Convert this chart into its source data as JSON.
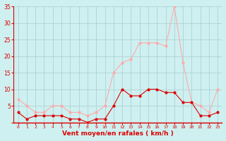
{
  "hours": [
    0,
    1,
    2,
    3,
    4,
    5,
    6,
    7,
    8,
    9,
    10,
    11,
    12,
    13,
    14,
    15,
    16,
    17,
    18,
    19,
    20,
    21,
    22,
    23
  ],
  "wind_avg": [
    3,
    1,
    2,
    2,
    2,
    2,
    1,
    1,
    0,
    1,
    1,
    5,
    10,
    8,
    8,
    10,
    10,
    9,
    9,
    6,
    6,
    2,
    2,
    3
  ],
  "wind_gust": [
    7,
    5,
    3,
    3,
    5,
    5,
    3,
    3,
    2,
    3,
    5,
    15,
    18,
    19,
    24,
    24,
    24,
    23,
    35,
    18,
    6,
    5,
    3,
    10
  ],
  "avg_color": "#dd0000",
  "gust_color": "#ffaaaa",
  "bg_color": "#cef0f0",
  "grid_color": "#aacccc",
  "xlabel": "Vent moyen/en rafales ( km/h )",
  "ylim": [
    0,
    35
  ],
  "yticks": [
    0,
    5,
    10,
    15,
    20,
    25,
    30,
    35
  ],
  "xlabel_color": "#dd0000",
  "tick_color": "#dd0000"
}
